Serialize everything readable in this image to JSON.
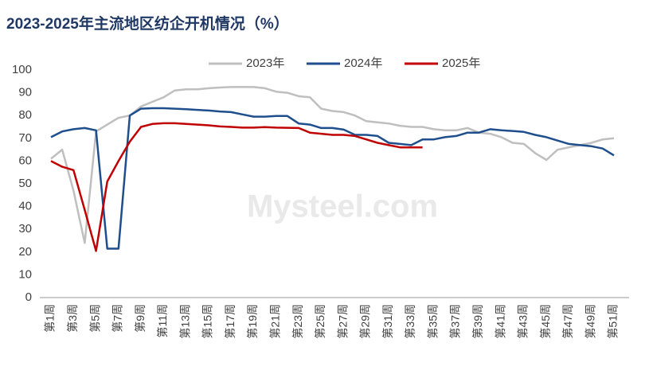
{
  "chart_data": {
    "type": "line",
    "title": "2023-2025年主流地区纺企开机情况（%）",
    "watermark": "Mysteel.com",
    "categories": [
      "第1周",
      null,
      "第3周",
      null,
      "第5周",
      null,
      "第7周",
      null,
      "第9周",
      null,
      "第11周",
      null,
      "第13周",
      null,
      "第15周",
      null,
      "第17周",
      null,
      "第19周",
      null,
      "第21周",
      null,
      "第23周",
      null,
      "第25周",
      null,
      "第27周",
      null,
      "第29周",
      null,
      "第31周",
      null,
      "第33周",
      null,
      "第35周",
      null,
      "第37周",
      null,
      "第39周",
      null,
      "第41周",
      null,
      "第43周",
      null,
      "第45周",
      null,
      "第47周",
      null,
      "第49周",
      null,
      "第51周"
    ],
    "series": [
      {
        "name": "2023年",
        "color": "#bfbfbf",
        "values": [
          61,
          65,
          47,
          24,
          73,
          76,
          79,
          80,
          84,
          86,
          88,
          91,
          91.5,
          91.5,
          92,
          92.3,
          92.5,
          92.5,
          92.5,
          92,
          90.5,
          90,
          88.5,
          88,
          83,
          82,
          81.5,
          80,
          77.5,
          77,
          76.5,
          75.5,
          75,
          75,
          74,
          73.5,
          73.5,
          74.5,
          72.5,
          72,
          70.5,
          68,
          67.5,
          63.5,
          60.5,
          65,
          66,
          67,
          68,
          69.5,
          70
        ]
      },
      {
        "name": "2024年",
        "color": "#1f4e8c",
        "values": [
          70.5,
          73,
          74,
          74.5,
          73.5,
          21.5,
          21.5,
          80,
          83,
          83.2,
          83.2,
          83,
          82.8,
          82.5,
          82.2,
          81.8,
          81.5,
          80.5,
          79.5,
          79.5,
          79.8,
          79.8,
          76.5,
          76,
          74.5,
          74.5,
          73.8,
          71.5,
          71.5,
          71,
          68,
          67.5,
          67,
          69.5,
          69.5,
          70.5,
          71,
          72.5,
          72.5,
          74,
          73.5,
          73.2,
          72.8,
          71.5,
          70.5,
          69,
          67.5,
          67,
          66.5,
          65.5,
          62.5
        ]
      },
      {
        "name": "2025年",
        "color": "#c00000",
        "values": [
          60,
          57.5,
          56,
          38.5,
          20.5,
          51,
          60,
          68.5,
          75,
          76.3,
          76.6,
          76.6,
          76.3,
          76,
          75.7,
          75.2,
          75,
          74.7,
          74.7,
          74.9,
          74.7,
          74.6,
          74.5,
          72.5,
          72,
          71.5,
          71.5,
          71,
          69.5,
          68,
          67,
          66,
          66,
          66,
          null,
          null,
          null,
          null,
          null,
          null,
          null,
          null,
          null,
          null,
          null,
          null,
          null,
          null,
          null,
          null,
          null
        ]
      }
    ],
    "ylim": [
      0,
      100
    ],
    "yticks": [
      0,
      10,
      20,
      30,
      40,
      50,
      60,
      70,
      80,
      90,
      100
    ],
    "grid": false,
    "legend": "top"
  }
}
